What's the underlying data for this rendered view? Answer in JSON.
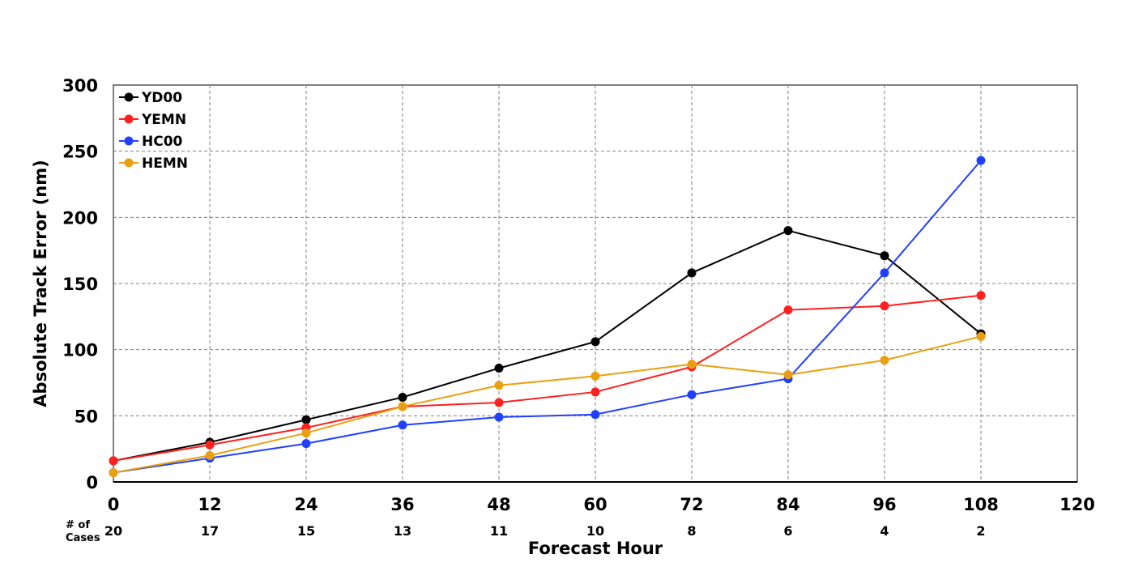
{
  "chart_data": {
    "type": "line",
    "title": "",
    "xlabel": "Forecast Hour",
    "ylabel": "Absolute Track Error (nm)",
    "xlim": [
      0,
      120
    ],
    "ylim": [
      0,
      300
    ],
    "x_ticks": [
      0,
      12,
      24,
      36,
      48,
      60,
      72,
      84,
      96,
      108,
      120
    ],
    "y_ticks": [
      0,
      50,
      100,
      150,
      200,
      250,
      300
    ],
    "grid": true,
    "legend_position": "top-left",
    "cases_label_line1": "# of",
    "cases_label_line2": "Cases",
    "cases": [
      {
        "x": 0,
        "n": "20"
      },
      {
        "x": 12,
        "n": "17"
      },
      {
        "x": 24,
        "n": "15"
      },
      {
        "x": 36,
        "n": "13"
      },
      {
        "x": 48,
        "n": "11"
      },
      {
        "x": 60,
        "n": "10"
      },
      {
        "x": 72,
        "n": "8"
      },
      {
        "x": 84,
        "n": "6"
      },
      {
        "x": 96,
        "n": "4"
      },
      {
        "x": 108,
        "n": "2"
      }
    ],
    "x": [
      0,
      12,
      24,
      36,
      48,
      60,
      72,
      84,
      96,
      108
    ],
    "series": [
      {
        "name": "YD00",
        "color": "#000000",
        "values": [
          16,
          30,
          47,
          64,
          86,
          106,
          158,
          190,
          171,
          112
        ]
      },
      {
        "name": "YEMN",
        "color": "#ff2020",
        "values": [
          16,
          28,
          41,
          57,
          60,
          68,
          87,
          130,
          133,
          141
        ]
      },
      {
        "name": "HC00",
        "color": "#2040ff",
        "values": [
          7,
          18,
          29,
          43,
          49,
          51,
          66,
          78,
          158,
          243
        ]
      },
      {
        "name": "HEMN",
        "color": "#e8a010",
        "values": [
          7,
          20,
          37,
          57,
          73,
          80,
          89,
          81,
          92,
          110
        ]
      }
    ]
  }
}
